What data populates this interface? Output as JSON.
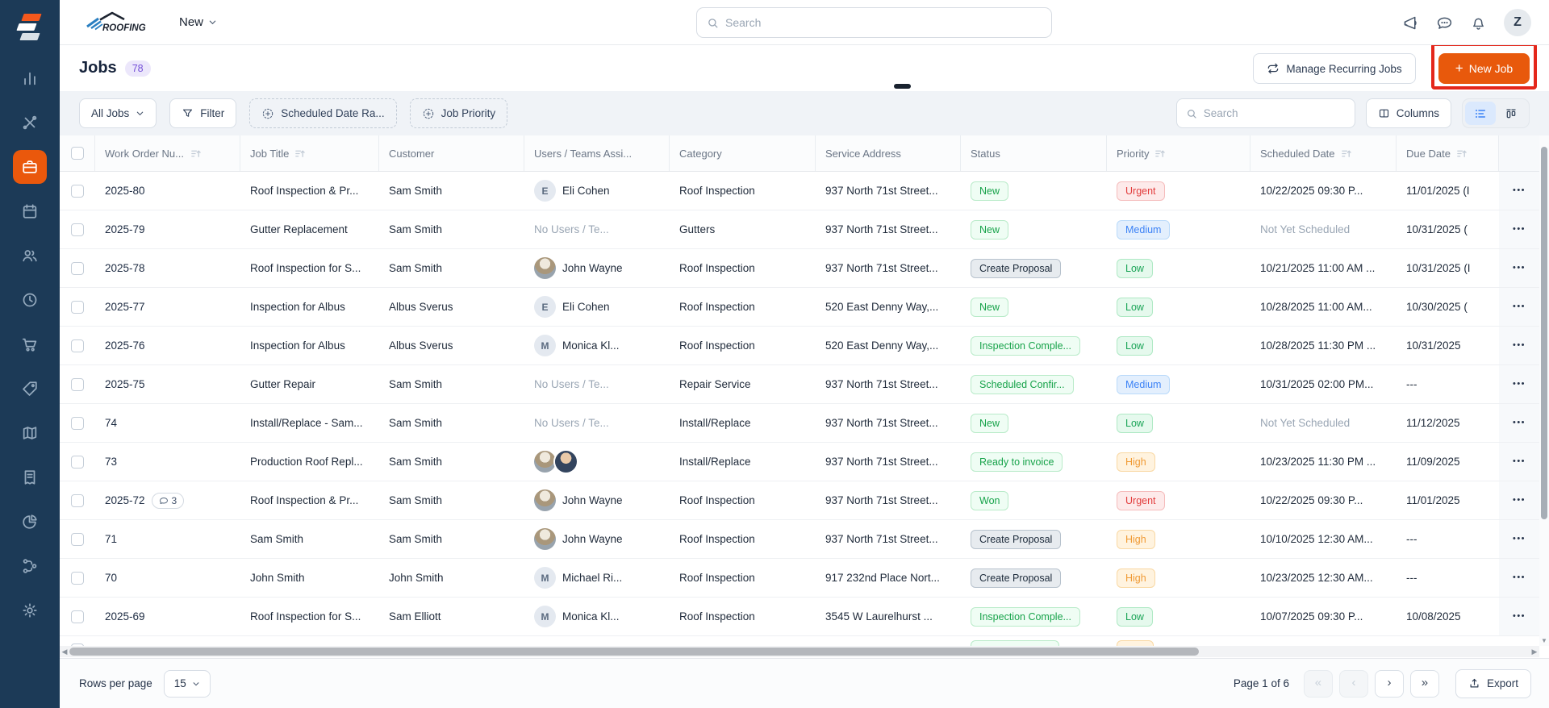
{
  "colors": {
    "accent_orange": "#EA580C",
    "sidebar_bg": "#1C3A57",
    "annotation_red": "#E4271B",
    "active_blue": "#3B82F6"
  },
  "sidebar": {
    "items": [
      {
        "name": "analytics",
        "icon": "bar-chart-icon",
        "active": false
      },
      {
        "name": "tools",
        "icon": "tools-icon",
        "active": false
      },
      {
        "name": "jobs",
        "icon": "briefcase-icon",
        "active": true
      },
      {
        "name": "schedule",
        "icon": "calendar-icon",
        "active": false
      },
      {
        "name": "customers",
        "icon": "users-icon",
        "active": false
      },
      {
        "name": "time",
        "icon": "clock-icon",
        "active": false
      },
      {
        "name": "sales",
        "icon": "cart-icon",
        "active": false
      },
      {
        "name": "pricing",
        "icon": "tag-icon",
        "active": false
      },
      {
        "name": "map",
        "icon": "map-icon",
        "active": false
      },
      {
        "name": "invoices",
        "icon": "receipt-icon",
        "active": false
      },
      {
        "name": "reports",
        "icon": "pie-chart-icon",
        "active": false
      },
      {
        "name": "workflows",
        "icon": "workflow-icon",
        "active": false
      },
      {
        "name": "settings",
        "icon": "gear-icon",
        "active": false
      }
    ]
  },
  "topbar": {
    "brand": "ROOFING",
    "menu_new": "New",
    "search_placeholder": "Search",
    "avatar_initial": "Z"
  },
  "page_header": {
    "title": "Jobs",
    "count": "78",
    "manage_recurring_label": "Manage Recurring Jobs",
    "new_job_plus": "+",
    "new_job_label": "New Job"
  },
  "filter_bar": {
    "view_select": "All Jobs",
    "filter_label": "Filter",
    "scheduled_date_chip": "Scheduled Date Ra...",
    "job_priority_chip": "Job Priority",
    "search_placeholder": "Search",
    "columns_label": "Columns"
  },
  "table": {
    "headers": [
      {
        "label": "Work Order Nu...",
        "sortable": true
      },
      {
        "label": "Job Title",
        "sortable": true
      },
      {
        "label": "Customer",
        "sortable": false
      },
      {
        "label": "Users / Teams Assi...",
        "sortable": false
      },
      {
        "label": "Category",
        "sortable": false
      },
      {
        "label": "Service Address",
        "sortable": false
      },
      {
        "label": "Status",
        "sortable": false
      },
      {
        "label": "Priority",
        "sortable": true
      },
      {
        "label": "Scheduled Date",
        "sortable": true
      },
      {
        "label": "Due Date",
        "sortable": true
      }
    ],
    "rows": [
      {
        "wo": "2025-80",
        "comments": null,
        "title": "Roof Inspection & Pr...",
        "customer": "Sam Smith",
        "users": {
          "kind": "initial",
          "initial": "E",
          "name": "Eli Cohen"
        },
        "category": "Roof Inspection",
        "address": "937 North 71st Street...",
        "status": {
          "label": "New",
          "variant": "green"
        },
        "priority": {
          "label": "Urgent",
          "variant": "urgent"
        },
        "scheduled": {
          "text": "10/22/2025 09:30 P...",
          "muted": false
        },
        "due": "11/01/2025 (I"
      },
      {
        "wo": "2025-79",
        "comments": null,
        "title": "Gutter Replacement",
        "customer": "Sam Smith",
        "users": {
          "kind": "none",
          "text": "No Users / Te..."
        },
        "category": "Gutters",
        "address": "937 North 71st Street...",
        "status": {
          "label": "New",
          "variant": "green"
        },
        "priority": {
          "label": "Medium",
          "variant": "medium"
        },
        "scheduled": {
          "text": "Not Yet Scheduled",
          "muted": true
        },
        "due": "10/31/2025 ("
      },
      {
        "wo": "2025-78",
        "comments": null,
        "title": "Roof Inspection for S...",
        "customer": "Sam Smith",
        "users": {
          "kind": "photo",
          "name": "John Wayne"
        },
        "category": "Roof Inspection",
        "address": "937 North 71st Street...",
        "status": {
          "label": "Create Proposal",
          "variant": "gray"
        },
        "priority": {
          "label": "Low",
          "variant": "low"
        },
        "scheduled": {
          "text": "10/21/2025 11:00 AM ...",
          "muted": false
        },
        "due": "10/31/2025 (I"
      },
      {
        "wo": "2025-77",
        "comments": null,
        "title": "Inspection for Albus",
        "customer": "Albus Sverus",
        "users": {
          "kind": "initial",
          "initial": "E",
          "name": "Eli Cohen"
        },
        "category": "Roof Inspection",
        "address": "520 East Denny Way,...",
        "status": {
          "label": "New",
          "variant": "green"
        },
        "priority": {
          "label": "Low",
          "variant": "low"
        },
        "scheduled": {
          "text": "10/28/2025 11:00 AM...",
          "muted": false
        },
        "due": "10/30/2025 ("
      },
      {
        "wo": "2025-76",
        "comments": null,
        "title": "Inspection for Albus",
        "customer": "Albus Sverus",
        "users": {
          "kind": "initial",
          "initial": "M",
          "name": "Monica Kl..."
        },
        "category": "Roof Inspection",
        "address": "520 East Denny Way,...",
        "status": {
          "label": "Inspection Comple...",
          "variant": "green"
        },
        "priority": {
          "label": "Low",
          "variant": "low"
        },
        "scheduled": {
          "text": "10/28/2025 11:30 PM ...",
          "muted": false
        },
        "due": "10/31/2025"
      },
      {
        "wo": "2025-75",
        "comments": null,
        "title": "Gutter Repair",
        "customer": "Sam Smith",
        "users": {
          "kind": "none",
          "text": "No Users / Te..."
        },
        "category": "Repair Service",
        "address": "937 North 71st Street...",
        "status": {
          "label": "Scheduled Confir...",
          "variant": "green"
        },
        "priority": {
          "label": "Medium",
          "variant": "medium"
        },
        "scheduled": {
          "text": "10/31/2025 02:00 PM...",
          "muted": false
        },
        "due": "---"
      },
      {
        "wo": "74",
        "comments": null,
        "title": "Install/Replace - Sam...",
        "customer": "Sam Smith",
        "users": {
          "kind": "none",
          "text": "No Users / Te..."
        },
        "category": "Install/Replace",
        "address": "937 North 71st Street...",
        "status": {
          "label": "New",
          "variant": "green"
        },
        "priority": {
          "label": "Low",
          "variant": "low"
        },
        "scheduled": {
          "text": "Not Yet Scheduled",
          "muted": true
        },
        "due": "11/12/2025"
      },
      {
        "wo": "73",
        "comments": null,
        "title": "Production Roof Repl...",
        "customer": "Sam Smith",
        "users": {
          "kind": "photos2"
        },
        "category": "Install/Replace",
        "address": "937 North 71st Street...",
        "status": {
          "label": "Ready to invoice",
          "variant": "green"
        },
        "priority": {
          "label": "High",
          "variant": "high"
        },
        "scheduled": {
          "text": "10/23/2025 11:30 PM ...",
          "muted": false
        },
        "due": "11/09/2025"
      },
      {
        "wo": "2025-72",
        "comments": "3",
        "title": "Roof Inspection & Pr...",
        "customer": "Sam Smith",
        "users": {
          "kind": "photo",
          "name": "John Wayne"
        },
        "category": "Roof Inspection",
        "address": "937 North 71st Street...",
        "status": {
          "label": "Won",
          "variant": "green"
        },
        "priority": {
          "label": "Urgent",
          "variant": "urgent"
        },
        "scheduled": {
          "text": "10/22/2025 09:30 P...",
          "muted": false
        },
        "due": "11/01/2025"
      },
      {
        "wo": "71",
        "comments": null,
        "title": "Sam Smith",
        "customer": "Sam Smith",
        "users": {
          "kind": "photo",
          "name": "John Wayne"
        },
        "category": "Roof Inspection",
        "address": "937 North 71st Street...",
        "status": {
          "label": "Create Proposal",
          "variant": "gray"
        },
        "priority": {
          "label": "High",
          "variant": "high"
        },
        "scheduled": {
          "text": "10/10/2025 12:30 AM...",
          "muted": false
        },
        "due": "---"
      },
      {
        "wo": "70",
        "comments": null,
        "title": "John Smith",
        "customer": "John Smith",
        "users": {
          "kind": "initial",
          "initial": "M",
          "name": "Michael Ri..."
        },
        "category": "Roof Inspection",
        "address": "917 232nd Place Nort...",
        "status": {
          "label": "Create Proposal",
          "variant": "gray"
        },
        "priority": {
          "label": "High",
          "variant": "high"
        },
        "scheduled": {
          "text": "10/23/2025 12:30 AM...",
          "muted": false
        },
        "due": "---"
      },
      {
        "wo": "2025-69",
        "comments": null,
        "title": "Roof Inspection for S...",
        "customer": "Sam Elliott",
        "users": {
          "kind": "initial",
          "initial": "M",
          "name": "Monica Kl..."
        },
        "category": "Roof Inspection",
        "address": "3545 W Laurelhurst ...",
        "status": {
          "label": "Inspection Comple...",
          "variant": "green"
        },
        "priority": {
          "label": "Low",
          "variant": "low"
        },
        "scheduled": {
          "text": "10/07/2025 09:30 P...",
          "muted": false
        },
        "due": "10/08/2025"
      }
    ],
    "partial_row": {
      "status_variant": "green",
      "priority_variant": "high"
    }
  },
  "footer": {
    "rows_per_page_label": "Rows per page",
    "rows_per_page_value": "15",
    "page_info": "Page 1 of 6",
    "pag_first": "«",
    "pag_prev": "‹",
    "pag_next": "›",
    "pag_last": "»",
    "export_label": "Export"
  }
}
